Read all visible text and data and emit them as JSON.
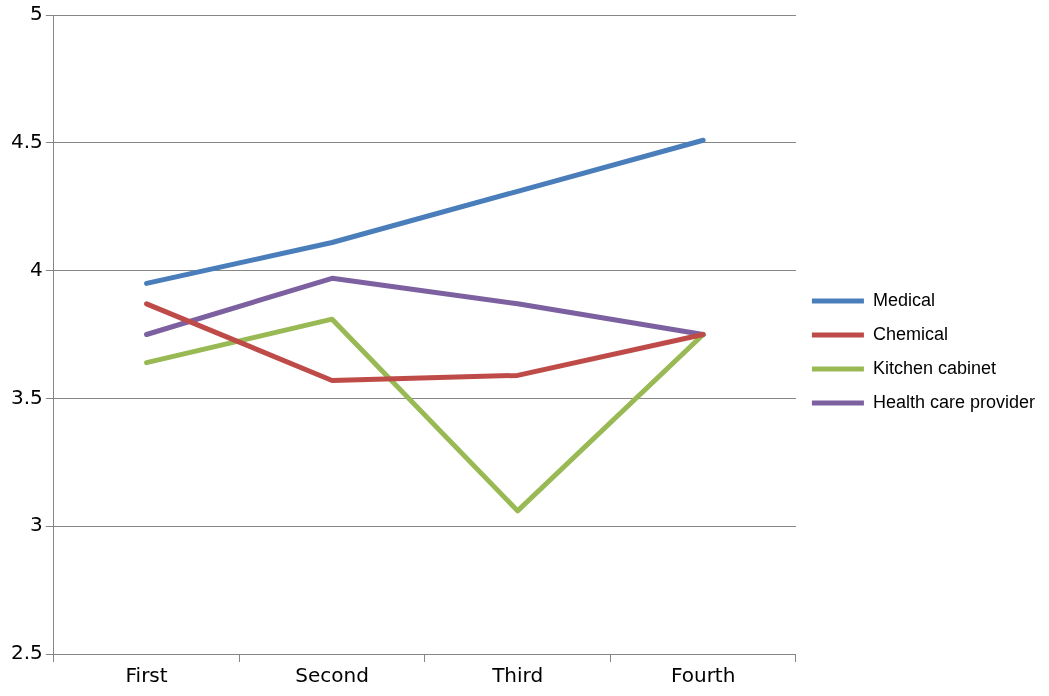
{
  "chart_data": {
    "type": "line",
    "categories": [
      "First",
      "Second",
      "Third",
      "Fourth"
    ],
    "series": [
      {
        "name": "Medical",
        "color": "#4a7ebb",
        "values": [
          3.95,
          4.11,
          4.31,
          4.51
        ]
      },
      {
        "name": "Chemical",
        "color": "#be4b48",
        "values": [
          3.87,
          3.57,
          3.59,
          3.75
        ]
      },
      {
        "name": "Kitchen cabinet",
        "color": "#98b954",
        "values": [
          3.64,
          3.81,
          3.06,
          3.75
        ]
      },
      {
        "name": "Health care provider",
        "color": "#7d60a0",
        "values": [
          3.75,
          3.97,
          3.87,
          3.75
        ]
      }
    ],
    "ylim": [
      2.5,
      5
    ],
    "yticks": [
      2.5,
      3,
      3.5,
      4,
      4.5,
      5
    ],
    "grid": "y",
    "legend": "right",
    "marker": "none",
    "line_style": "solid"
  }
}
